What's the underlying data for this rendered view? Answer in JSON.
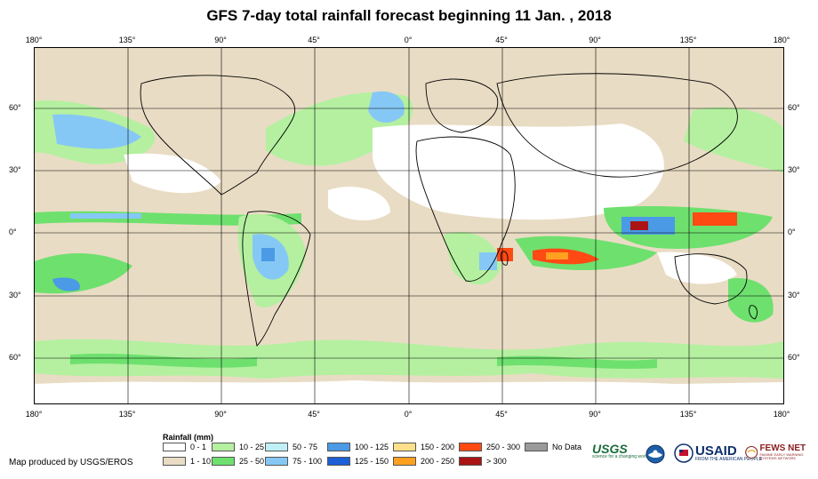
{
  "title": "GFS 7-day total rainfall forecast beginning 11 Jan. , 2018",
  "axes": {
    "longitude_labels": [
      "180°",
      "135°",
      "90°",
      "45°",
      "0°",
      "45°",
      "90°",
      "135°",
      "180°"
    ],
    "latitude_labels": [
      "60°",
      "30°",
      "0°",
      "30°",
      "60°"
    ]
  },
  "legend": {
    "title": "Rainfall (mm)",
    "items": [
      {
        "label": "0 - 1",
        "color": "#ffffff"
      },
      {
        "label": "1 - 10",
        "color": "#e9dcc4"
      },
      {
        "label": "10 - 25",
        "color": "#b4f0a0"
      },
      {
        "label": "25 - 50",
        "color": "#6ee06e"
      },
      {
        "label": "50 - 75",
        "color": "#bff0f5"
      },
      {
        "label": "75 - 100",
        "color": "#86c8f5"
      },
      {
        "label": "100 - 125",
        "color": "#4a9ae6"
      },
      {
        "label": "125 - 150",
        "color": "#1c5fd6"
      },
      {
        "label": "150 - 200",
        "color": "#ffe08a"
      },
      {
        "label": "200 - 250",
        "color": "#ffa020"
      },
      {
        "label": "250 - 300",
        "color": "#ff4a14"
      },
      {
        "label": "> 300",
        "color": "#aa1414"
      },
      {
        "label": "No Data",
        "color": "#9a9a9a"
      }
    ]
  },
  "credit": "Map produced by USGS/EROS",
  "logos": {
    "usgs": {
      "name": "USGS",
      "tagline": "science for a changing world",
      "color": "#1b6b3a"
    },
    "noaa": {
      "name": "noaa-logo-icon"
    },
    "usaid": {
      "name": "USAID",
      "tagline": "FROM THE AMERICAN PEOPLE",
      "color": "#0c2f6b"
    },
    "fews": {
      "name": "FEWS NET",
      "tagline": "FAMINE EARLY WARNING SYSTEMS NETWORK",
      "color": "#8b1e1e"
    }
  }
}
